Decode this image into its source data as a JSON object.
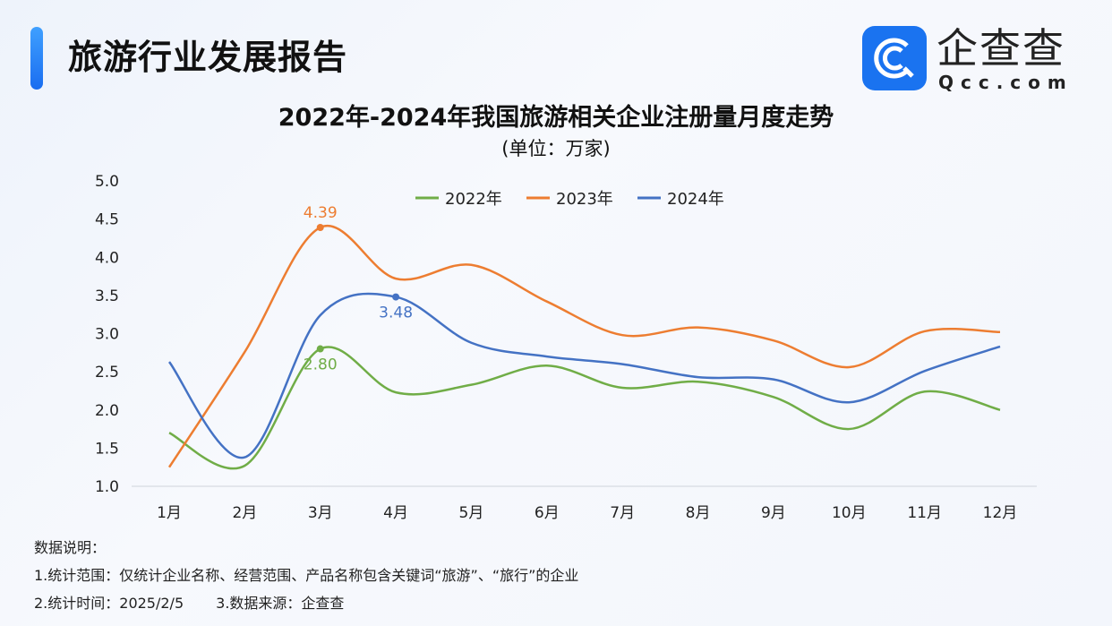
{
  "header": {
    "title": "旅游行业发展报告",
    "brand_cn": "企查查",
    "brand_en": "Qcc.com",
    "brand_color": "#1a73f0"
  },
  "chart_data": {
    "type": "line",
    "title": "2022年-2024年我国旅游相关企业注册量月度走势",
    "subtitle": "(单位：万家)",
    "categories": [
      "1月",
      "2月",
      "3月",
      "4月",
      "5月",
      "6月",
      "7月",
      "8月",
      "9月",
      "10月",
      "11月",
      "12月"
    ],
    "ylim": [
      1.0,
      5.0
    ],
    "yticks": [
      "1.0",
      "1.5",
      "2.0",
      "2.5",
      "3.0",
      "3.5",
      "4.0",
      "4.5",
      "5.0"
    ],
    "legend_position": "top",
    "grid": false,
    "series": [
      {
        "name": "2022年",
        "color": "#70ad47",
        "values": [
          1.7,
          1.27,
          2.8,
          2.23,
          2.33,
          2.58,
          2.29,
          2.37,
          2.17,
          1.75,
          2.24,
          2.0
        ],
        "label_index": 2,
        "label": "2.80"
      },
      {
        "name": "2023年",
        "color": "#ed7d31",
        "values": [
          1.25,
          2.76,
          4.39,
          3.72,
          3.9,
          3.42,
          2.98,
          3.08,
          2.91,
          2.56,
          3.03,
          3.02
        ],
        "label_index": 2,
        "label": "4.39"
      },
      {
        "name": "2024年",
        "color": "#4472c4",
        "values": [
          2.63,
          1.38,
          3.24,
          3.48,
          2.88,
          2.7,
          2.6,
          2.43,
          2.4,
          2.1,
          2.51,
          2.83
        ],
        "label_index": 3,
        "label": "3.48"
      }
    ]
  },
  "notes": {
    "heading": "数据说明：",
    "line1": "1.统计范围：仅统计企业名称、经营范围、产品名称包含关键词“旅游”、“旅行”的企业",
    "line2a": "2.统计时间：2025/2/5",
    "line2b": "3.数据来源：企查查"
  }
}
